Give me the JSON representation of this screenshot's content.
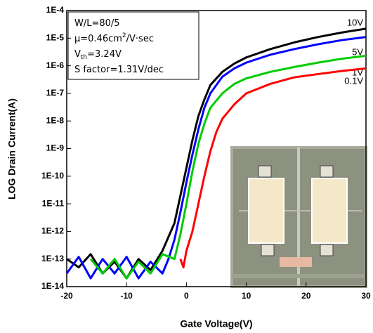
{
  "chart_data": {
    "type": "line",
    "log_y": true,
    "xlabel": "Gate Voltage(V)",
    "ylabel": "LOG Drain Current(A)",
    "annotation": [
      [
        "W/L=80/5"
      ],
      [
        "μ=0.46cm",
        "2",
        "/V·sec"
      ],
      [
        "V",
        "th",
        "=3.24V"
      ],
      [
        "S factor=1.31V/dec"
      ]
    ],
    "xlim": [
      -20,
      30
    ],
    "xticks": [
      -20,
      -10,
      0,
      10,
      20,
      30
    ],
    "ylim": [
      1e-14,
      0.0001
    ],
    "yticks": [
      {
        "value": 1e-14,
        "label": "1E-14"
      },
      {
        "value": 1e-13,
        "label": "1E-13"
      },
      {
        "value": 1e-12,
        "label": "1E-12"
      },
      {
        "value": 1e-11,
        "label": "1E-11"
      },
      {
        "value": 1e-10,
        "label": "1E-10"
      },
      {
        "value": 1e-09,
        "label": "1E-9"
      },
      {
        "value": 1e-08,
        "label": "1E-8"
      },
      {
        "value": 1e-07,
        "label": "1E-7"
      },
      {
        "value": 1e-06,
        "label": "1E-6"
      },
      {
        "value": 1e-05,
        "label": "1E-5"
      },
      {
        "value": 0.0001,
        "label": "1E-4"
      }
    ],
    "series": [
      {
        "name": "10V",
        "color": "#000000",
        "x": [
          -20,
          -18,
          -16,
          -14,
          -12,
          -10,
          -8,
          -6,
          -4,
          -2,
          -1,
          0,
          1,
          2,
          3,
          4,
          6,
          8,
          10,
          14,
          18,
          22,
          26,
          30
        ],
        "values": [
          1e-13,
          5e-14,
          1.5e-13,
          3e-14,
          8e-14,
          2e-14,
          1e-13,
          4e-14,
          2e-13,
          2e-12,
          2e-11,
          2e-10,
          2e-09,
          1.5e-08,
          6e-08,
          2e-07,
          6e-07,
          1.2e-06,
          2e-06,
          4e-06,
          7e-06,
          1.1e-05,
          1.6e-05,
          2.2e-05
        ]
      },
      {
        "name": "5V",
        "color": "#0000ff",
        "x": [
          -20,
          -18,
          -16,
          -14,
          -12,
          -10,
          -8,
          -6,
          -4,
          -3,
          -2,
          -1,
          0,
          1,
          2,
          3,
          4,
          6,
          8,
          10,
          14,
          18,
          22,
          26,
          30
        ],
        "values": [
          3e-14,
          1.2e-13,
          2e-14,
          1e-13,
          3e-14,
          1.2e-13,
          2e-14,
          8e-14,
          3e-14,
          1e-13,
          5e-13,
          5e-12,
          6e-11,
          6e-10,
          5e-09,
          3e-08,
          1e-07,
          4e-07,
          8e-07,
          1.3e-06,
          2.5e-06,
          4e-06,
          6e-06,
          8.5e-06,
          1.1e-05
        ]
      },
      {
        "name": "1V",
        "color": "#00cc00",
        "x": [
          -16,
          -14,
          -12,
          -10,
          -8,
          -6,
          -4,
          -2,
          -1,
          0,
          1,
          2,
          3,
          4,
          6,
          8,
          10,
          14,
          18,
          22,
          26,
          30
        ],
        "values": [
          1e-13,
          3e-14,
          1e-13,
          2e-14,
          8e-14,
          3e-14,
          1.5e-13,
          1e-13,
          8e-13,
          1e-11,
          1.5e-10,
          1.5e-09,
          8e-09,
          3e-08,
          1e-07,
          2.2e-07,
          3.5e-07,
          6e-07,
          9e-07,
          1.3e-06,
          1.8e-06,
          2.3e-06
        ]
      },
      {
        "name": "0.1V",
        "color": "#ff0000",
        "x": [
          -1,
          -0.5,
          0,
          1,
          2,
          3,
          4,
          5,
          6,
          8,
          10,
          14,
          18,
          22,
          26,
          30
        ],
        "values": [
          1e-13,
          5e-14,
          2e-13,
          1e-12,
          1e-11,
          1e-10,
          8e-10,
          4e-09,
          1.2e-08,
          4e-08,
          1e-07,
          2.2e-07,
          3.8e-07,
          5e-07,
          6.5e-07,
          8e-07
        ]
      }
    ]
  }
}
